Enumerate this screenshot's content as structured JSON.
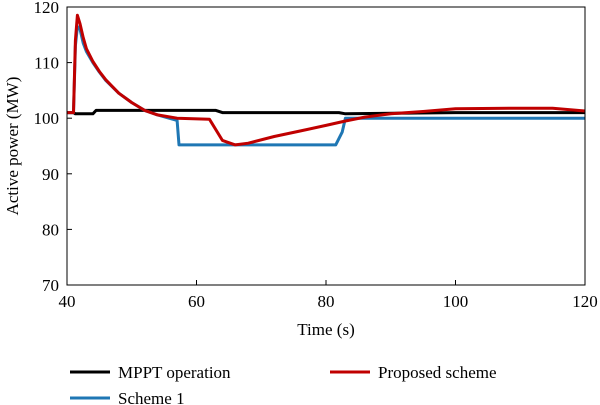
{
  "chart_data": {
    "type": "line",
    "title": "",
    "xlabel": "Time (s)",
    "ylabel": "Active power (MW)",
    "xlim": [
      40,
      120
    ],
    "ylim": [
      70,
      120
    ],
    "xticks": [
      40,
      60,
      80,
      100,
      120
    ],
    "yticks": [
      70,
      80,
      90,
      100,
      110,
      120
    ],
    "grid": false,
    "legend_position": "bottom",
    "series": [
      {
        "name": "MPPT operation",
        "color": "#000000",
        "x": [
          40,
          41,
          41.3,
          44,
          44.5,
          63,
          64,
          82,
          83,
          100,
          120
        ],
        "y": [
          101,
          101,
          100.8,
          100.8,
          101.4,
          101.4,
          101,
          101,
          100.8,
          101,
          101
        ]
      },
      {
        "name": "Scheme 1",
        "color": "#1f77b4",
        "x": [
          40,
          41,
          41.3,
          41.6,
          42,
          42.5,
          43,
          44,
          45,
          46,
          48,
          50,
          52,
          54,
          57,
          57.3,
          81.5,
          82.5,
          83,
          100,
          120
        ],
        "y": [
          101,
          101,
          113,
          116.5,
          116,
          113.5,
          112,
          110,
          108.3,
          106.8,
          104.5,
          102.8,
          101.4,
          100.6,
          99.6,
          95.2,
          95.2,
          97.5,
          100,
          100,
          100
        ]
      },
      {
        "name": "Proposed scheme",
        "color": "#c00000",
        "x": [
          40,
          41,
          41.3,
          41.6,
          42,
          42.5,
          43,
          44,
          45,
          46,
          48,
          50,
          52,
          54,
          57,
          62,
          64,
          66,
          68,
          72,
          76,
          80,
          83,
          86,
          90,
          95,
          100,
          110,
          115,
          120
        ],
        "y": [
          101,
          101,
          114,
          118.5,
          117,
          114.5,
          112.5,
          110.2,
          108.4,
          106.9,
          104.5,
          102.8,
          101.4,
          100.6,
          100,
          99.8,
          96,
          95.2,
          95.5,
          96.7,
          97.7,
          98.7,
          99.5,
          100.2,
          100.8,
          101.2,
          101.7,
          101.8,
          101.8,
          101.3
        ]
      }
    ]
  }
}
